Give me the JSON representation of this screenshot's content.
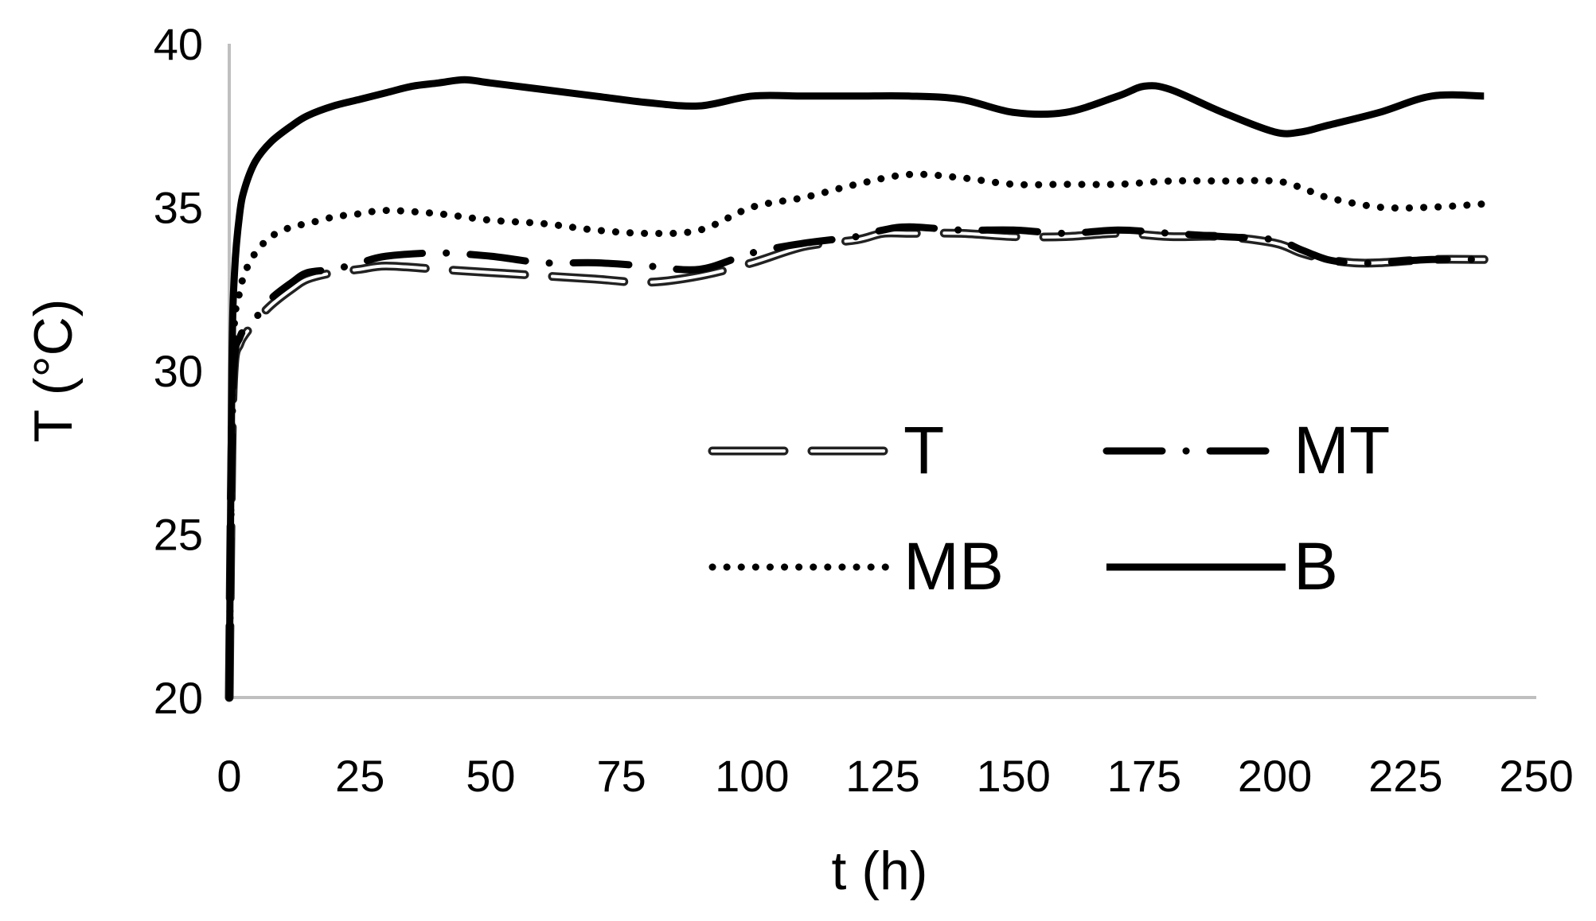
{
  "chart_data": {
    "type": "line",
    "xlabel": "t (h)",
    "ylabel": "T (°C)",
    "xlim": [
      0,
      250
    ],
    "ylim": [
      20,
      40
    ],
    "xticks": [
      0,
      25,
      50,
      75,
      100,
      125,
      150,
      175,
      200,
      225,
      250
    ],
    "yticks": [
      20,
      25,
      30,
      35,
      40
    ],
    "grid": false,
    "legend": "inside-right",
    "series": [
      {
        "name": "T",
        "style": "double-dash",
        "color": "#000000",
        "x": [
          0,
          0.5,
          1,
          2,
          3,
          5,
          8,
          12,
          15,
          20,
          25,
          30,
          40,
          50,
          60,
          70,
          80,
          90,
          100,
          110,
          120,
          125,
          130,
          140,
          150,
          160,
          170,
          180,
          190,
          200,
          205,
          210,
          215,
          220,
          230,
          240
        ],
        "y": [
          20,
          27.5,
          30.2,
          30.8,
          31.1,
          31.5,
          32.0,
          32.5,
          32.8,
          33.0,
          33.1,
          33.2,
          33.1,
          33.0,
          32.9,
          32.8,
          32.7,
          32.9,
          33.3,
          33.8,
          34.0,
          34.2,
          34.2,
          34.2,
          34.1,
          34.1,
          34.2,
          34.1,
          34.1,
          33.9,
          33.6,
          33.4,
          33.3,
          33.3,
          33.4,
          33.4
        ]
      },
      {
        "name": "MT",
        "style": "dash-dot",
        "color": "#000000",
        "x": [
          0,
          0.5,
          1,
          2,
          3,
          5,
          8,
          12,
          15,
          20,
          25,
          30,
          40,
          50,
          60,
          70,
          80,
          90,
          100,
          110,
          120,
          125,
          130,
          140,
          150,
          160,
          170,
          180,
          190,
          200,
          205,
          210,
          215,
          220,
          230,
          240
        ],
        "y": [
          20,
          27.8,
          30.4,
          31.0,
          31.3,
          31.6,
          32.2,
          32.7,
          33.0,
          33.1,
          33.3,
          33.5,
          33.6,
          33.5,
          33.3,
          33.3,
          33.2,
          33.1,
          33.6,
          33.9,
          34.1,
          34.3,
          34.4,
          34.3,
          34.3,
          34.2,
          34.3,
          34.2,
          34.1,
          34.0,
          33.7,
          33.4,
          33.3,
          33.3,
          33.4,
          33.4
        ]
      },
      {
        "name": "MB",
        "style": "dotted",
        "color": "#000000",
        "x": [
          0,
          0.5,
          1,
          2,
          3,
          5,
          8,
          12,
          15,
          20,
          25,
          30,
          40,
          50,
          60,
          70,
          80,
          90,
          100,
          110,
          120,
          130,
          140,
          150,
          160,
          170,
          180,
          190,
          200,
          205,
          210,
          220,
          230,
          240
        ],
        "y": [
          20,
          29.0,
          31.5,
          32.4,
          33.0,
          33.6,
          34.1,
          34.4,
          34.5,
          34.7,
          34.8,
          34.9,
          34.8,
          34.6,
          34.5,
          34.3,
          34.2,
          34.3,
          35.0,
          35.3,
          35.7,
          36.0,
          35.9,
          35.7,
          35.7,
          35.7,
          35.8,
          35.8,
          35.8,
          35.6,
          35.3,
          35.0,
          35.0,
          35.1
        ]
      },
      {
        "name": "B",
        "style": "solid",
        "color": "#000000",
        "x": [
          0,
          0.5,
          1,
          2,
          3,
          5,
          8,
          12,
          15,
          20,
          25,
          30,
          35,
          40,
          45,
          50,
          60,
          70,
          80,
          90,
          100,
          110,
          120,
          130,
          140,
          150,
          160,
          170,
          175,
          180,
          190,
          200,
          205,
          210,
          220,
          230,
          240
        ],
        "y": [
          20,
          30.0,
          33.0,
          34.8,
          35.6,
          36.4,
          37.0,
          37.5,
          37.8,
          38.1,
          38.3,
          38.5,
          38.7,
          38.8,
          38.9,
          38.8,
          38.6,
          38.4,
          38.2,
          38.1,
          38.4,
          38.4,
          38.4,
          38.4,
          38.3,
          37.9,
          37.9,
          38.4,
          38.7,
          38.6,
          37.9,
          37.3,
          37.3,
          37.5,
          37.9,
          38.4,
          38.4
        ]
      }
    ]
  }
}
